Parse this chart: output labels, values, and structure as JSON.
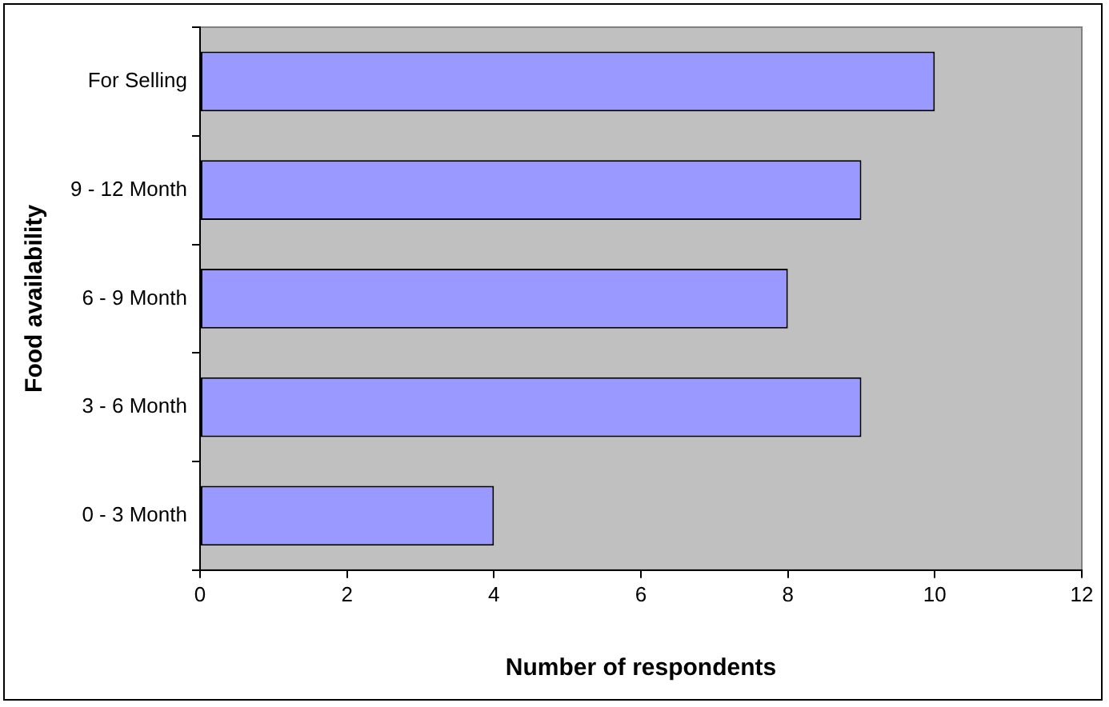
{
  "chart_data": {
    "type": "bar",
    "orientation": "horizontal",
    "xlabel": "Number of respondents",
    "ylabel": "Food availability",
    "categories": [
      "For Selling",
      "9 - 12 Month",
      "6 - 9 Month",
      "3 - 6 Month",
      "0 - 3 Month"
    ],
    "values": [
      10,
      9,
      8,
      9,
      4
    ],
    "color": "#9999ff",
    "xlim": [
      0,
      12
    ],
    "xticks": [
      0,
      2,
      4,
      6,
      8,
      10,
      12
    ],
    "grid": false,
    "legend": false
  }
}
